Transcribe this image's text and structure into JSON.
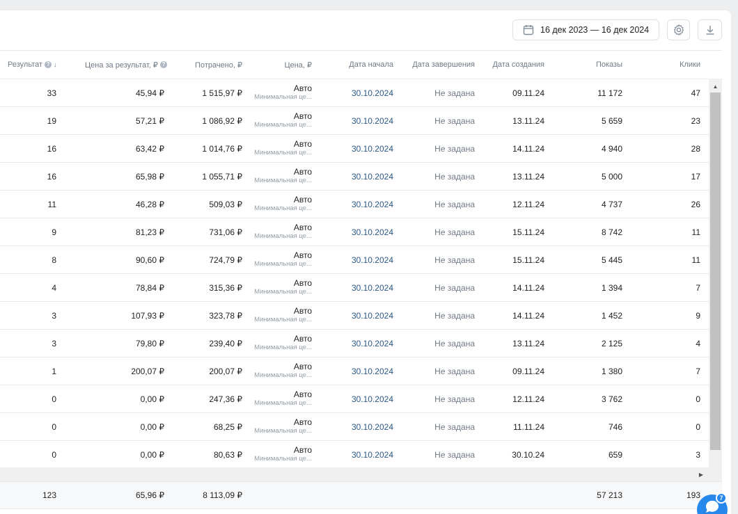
{
  "toolbar": {
    "date_range": "16 дек 2023 — 16 дек 2024",
    "settings_icon": "gear-icon",
    "download_icon": "download-icon",
    "calendar_icon": "calendar-icon"
  },
  "columns": {
    "result": "Результат",
    "cost_per_result": "Цена за результат, ₽",
    "spent": "Потрачено, ₽",
    "price": "Цена, ₽",
    "start_date": "Дата начала",
    "end_date": "Дата завершения",
    "created": "Дата создания",
    "impressions": "Показы",
    "clicks": "Клики"
  },
  "price_sub": "Минимальная це...",
  "rows": [
    {
      "result": "33",
      "cpr": "45,94 ₽",
      "spent": "1 515,97 ₽",
      "price": "Авто",
      "start": "30.10.2024",
      "end": "Не задана",
      "created": "09.11.24",
      "impressions": "11 172",
      "clicks": "47"
    },
    {
      "result": "19",
      "cpr": "57,21 ₽",
      "spent": "1 086,92 ₽",
      "price": "Авто",
      "start": "30.10.2024",
      "end": "Не задана",
      "created": "13.11.24",
      "impressions": "5 659",
      "clicks": "23"
    },
    {
      "result": "16",
      "cpr": "63,42 ₽",
      "spent": "1 014,76 ₽",
      "price": "Авто",
      "start": "30.10.2024",
      "end": "Не задана",
      "created": "14.11.24",
      "impressions": "4 940",
      "clicks": "28"
    },
    {
      "result": "16",
      "cpr": "65,98 ₽",
      "spent": "1 055,71 ₽",
      "price": "Авто",
      "start": "30.10.2024",
      "end": "Не задана",
      "created": "13.11.24",
      "impressions": "5 000",
      "clicks": "17"
    },
    {
      "result": "11",
      "cpr": "46,28 ₽",
      "spent": "509,03 ₽",
      "price": "Авто",
      "start": "30.10.2024",
      "end": "Не задана",
      "created": "12.11.24",
      "impressions": "4 737",
      "clicks": "26"
    },
    {
      "result": "9",
      "cpr": "81,23 ₽",
      "spent": "731,06 ₽",
      "price": "Авто",
      "start": "30.10.2024",
      "end": "Не задана",
      "created": "15.11.24",
      "impressions": "8 742",
      "clicks": "11"
    },
    {
      "result": "8",
      "cpr": "90,60 ₽",
      "spent": "724,79 ₽",
      "price": "Авто",
      "start": "30.10.2024",
      "end": "Не задана",
      "created": "15.11.24",
      "impressions": "5 445",
      "clicks": "11"
    },
    {
      "result": "4",
      "cpr": "78,84 ₽",
      "spent": "315,36 ₽",
      "price": "Авто",
      "start": "30.10.2024",
      "end": "Не задана",
      "created": "14.11.24",
      "impressions": "1 394",
      "clicks": "7"
    },
    {
      "result": "3",
      "cpr": "107,93 ₽",
      "spent": "323,78 ₽",
      "price": "Авто",
      "start": "30.10.2024",
      "end": "Не задана",
      "created": "14.11.24",
      "impressions": "1 452",
      "clicks": "9"
    },
    {
      "result": "3",
      "cpr": "79,80 ₽",
      "spent": "239,40 ₽",
      "price": "Авто",
      "start": "30.10.2024",
      "end": "Не задана",
      "created": "13.11.24",
      "impressions": "2 125",
      "clicks": "4"
    },
    {
      "result": "1",
      "cpr": "200,07 ₽",
      "spent": "200,07 ₽",
      "price": "Авто",
      "start": "30.10.2024",
      "end": "Не задана",
      "created": "09.11.24",
      "impressions": "1 380",
      "clicks": "7"
    },
    {
      "result": "0",
      "cpr": "0,00 ₽",
      "spent": "247,36 ₽",
      "price": "Авто",
      "start": "30.10.2024",
      "end": "Не задана",
      "created": "12.11.24",
      "impressions": "3 762",
      "clicks": "0"
    },
    {
      "result": "0",
      "cpr": "0,00 ₽",
      "spent": "68,25 ₽",
      "price": "Авто",
      "start": "30.10.2024",
      "end": "Не задана",
      "created": "11.11.24",
      "impressions": "746",
      "clicks": "0"
    },
    {
      "result": "0",
      "cpr": "0,00 ₽",
      "spent": "80,63 ₽",
      "price": "Авто",
      "start": "30.10.2024",
      "end": "Не задана",
      "created": "30.10.24",
      "impressions": "659",
      "clicks": "3"
    }
  ],
  "totals": {
    "result": "123",
    "cpr": "65,96 ₽",
    "spent": "8 113,09 ₽",
    "impressions": "57 213",
    "clicks": "193"
  },
  "chat": {
    "badge": "7",
    "icon": "chat-icon"
  },
  "colors": {
    "link": "#2a5885",
    "accent": "#2688eb"
  }
}
